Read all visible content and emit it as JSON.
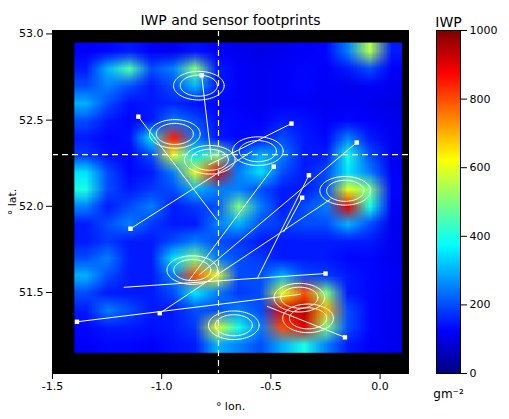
{
  "chart_data": {
    "type": "heatmap",
    "title": "IWP and sensor footprints",
    "x_label": "° lon.",
    "y_label": "° lat.",
    "xlim": [
      -1.5,
      0.13
    ],
    "ylim": [
      51.03,
      53.02
    ],
    "xticks": [
      -1.5,
      {
        "value": -1.0,
        "label": "-1.0"
      },
      -0.5,
      {
        "value": 0,
        "label": "0.0"
      }
    ],
    "yticks": [
      51.5,
      {
        "value": 52,
        "label": "52.0"
      },
      52.5,
      {
        "value": 53,
        "label": "53.0"
      }
    ],
    "iwp": {
      "lon_range": [
        -1.4,
        0.1
      ],
      "lat_range": [
        52.95,
        51.15
      ],
      "values": [
        [
          120,
          130,
          150,
          120,
          110,
          140,
          120,
          110,
          100,
          110,
          120,
          130,
          250,
          550,
          150
        ],
        [
          150,
          300,
          450,
          200,
          250,
          500,
          150,
          120,
          110,
          120,
          130,
          120,
          150,
          200,
          120
        ],
        [
          200,
          250,
          200,
          150,
          200,
          300,
          150,
          120,
          110,
          120,
          130,
          120,
          110,
          120,
          110
        ],
        [
          300,
          200,
          140,
          150,
          160,
          140,
          130,
          120,
          110,
          120,
          120,
          110,
          120,
          110,
          100
        ],
        [
          200,
          150,
          130,
          150,
          250,
          200,
          140,
          130,
          120,
          150,
          140,
          120,
          130,
          120,
          110
        ],
        [
          150,
          130,
          140,
          350,
          850,
          250,
          150,
          130,
          140,
          200,
          150,
          130,
          250,
          150,
          110
        ],
        [
          180,
          140,
          130,
          200,
          600,
          350,
          500,
          200,
          300,
          250,
          150,
          150,
          400,
          200,
          110
        ],
        [
          350,
          200,
          130,
          150,
          250,
          600,
          900,
          250,
          350,
          200,
          150,
          200,
          350,
          250,
          120
        ],
        [
          400,
          200,
          150,
          180,
          200,
          300,
          250,
          250,
          200,
          150,
          150,
          200,
          600,
          500,
          130
        ],
        [
          250,
          150,
          200,
          250,
          150,
          180,
          200,
          500,
          250,
          150,
          200,
          250,
          900,
          400,
          120
        ],
        [
          150,
          200,
          250,
          180,
          150,
          150,
          250,
          300,
          200,
          180,
          200,
          200,
          300,
          200,
          110
        ],
        [
          150,
          180,
          150,
          150,
          200,
          250,
          200,
          180,
          150,
          150,
          150,
          150,
          150,
          150,
          110
        ],
        [
          200,
          250,
          150,
          150,
          350,
          500,
          250,
          200,
          180,
          150,
          150,
          150,
          130,
          130,
          110
        ],
        [
          300,
          200,
          150,
          150,
          250,
          800,
          600,
          200,
          200,
          300,
          200,
          180,
          150,
          130,
          120
        ],
        [
          200,
          150,
          150,
          150,
          200,
          350,
          250,
          180,
          200,
          600,
          800,
          500,
          150,
          130,
          110
        ],
        [
          150,
          250,
          200,
          150,
          150,
          200,
          200,
          250,
          200,
          900,
          950,
          700,
          200,
          130,
          110
        ],
        [
          130,
          150,
          150,
          140,
          150,
          180,
          600,
          400,
          250,
          800,
          900,
          500,
          200,
          130,
          110
        ],
        [
          120,
          130,
          130,
          120,
          140,
          150,
          300,
          250,
          200,
          300,
          400,
          250,
          150,
          120,
          110
        ]
      ]
    },
    "colorbar": {
      "title": "IWP",
      "unit": "gm⁻²",
      "lim": [
        0,
        1000
      ],
      "ticks": [
        0,
        200,
        400,
        600,
        800,
        1000
      ]
    },
    "footprints": [
      {
        "lon": -0.83,
        "lat": 52.7,
        "rx": [
          0.116,
          0.085
        ],
        "ry": [
          0.083,
          0.061
        ]
      },
      {
        "lon": -0.94,
        "lat": 52.42,
        "rx": [
          0.116,
          0.085
        ],
        "ry": [
          0.083,
          0.061
        ]
      },
      {
        "lon": -0.78,
        "lat": 52.27,
        "rx": [
          0.116,
          0.085
        ],
        "ry": [
          0.083,
          0.061
        ]
      },
      {
        "lon": -0.56,
        "lat": 52.32,
        "rx": [
          0.116,
          0.085
        ],
        "ry": [
          0.083,
          0.061
        ]
      },
      {
        "lon": -0.16,
        "lat": 52.09,
        "rx": [
          0.116,
          0.085
        ],
        "ry": [
          0.083,
          0.061
        ]
      },
      {
        "lon": -0.86,
        "lat": 51.63,
        "rx": [
          0.116,
          0.085
        ],
        "ry": [
          0.083,
          0.061
        ]
      },
      {
        "lon": -0.37,
        "lat": 51.47,
        "rx": [
          0.116,
          0.085
        ],
        "ry": [
          0.083,
          0.061
        ]
      },
      {
        "lon": -0.33,
        "lat": 51.35,
        "rx": [
          0.116,
          0.085
        ],
        "ry": [
          0.083,
          0.061
        ]
      },
      {
        "lon": -0.67,
        "lat": 51.31,
        "rx": [
          0.116,
          0.085
        ],
        "ry": [
          0.083,
          0.061
        ]
      }
    ],
    "tracks": {
      "marker": "square",
      "color": "white",
      "segments": [
        {
          "lon": [
            -0.817,
            -0.772
          ],
          "lat": [
            52.76,
            52.27
          ]
        },
        {
          "lon": [
            -1.107,
            -0.746
          ],
          "lat": [
            52.52,
            51.92
          ]
        },
        {
          "lon": [
            -0.406,
            -0.786
          ],
          "lat": [
            52.48,
            52.24
          ]
        },
        {
          "lon": [
            -0.107,
            -0.83
          ],
          "lat": [
            52.37,
            51.6
          ]
        },
        {
          "lon": [
            -0.487,
            -0.875
          ],
          "lat": [
            52.23,
            51.57
          ]
        },
        {
          "lon": [
            -0.326,
            -0.563
          ],
          "lat": [
            52.18,
            51.58
          ]
        },
        {
          "lon": [
            -0.357,
            -0.442
          ],
          "lat": [
            52.05,
            51.85
          ]
        },
        {
          "lon": [
            -0.25,
            -1.174
          ],
          "lat": [
            51.61,
            51.53
          ]
        },
        {
          "lon": [
            -1.143,
            -0.585
          ],
          "lat": [
            51.87,
            52.32
          ]
        },
        {
          "lon": [
            -1.388,
            -0.362
          ],
          "lat": [
            51.33,
            51.49
          ]
        },
        {
          "lon": [
            -0.161,
            -0.518
          ],
          "lat": [
            51.24,
            51.42
          ]
        },
        {
          "lon": [
            -1.009,
            -0.228
          ],
          "lat": [
            51.38,
            52.04
          ]
        }
      ]
    },
    "crosshair": {
      "lon": -0.74,
      "lat": 52.3,
      "line_style": "dashed",
      "color": "white"
    }
  }
}
